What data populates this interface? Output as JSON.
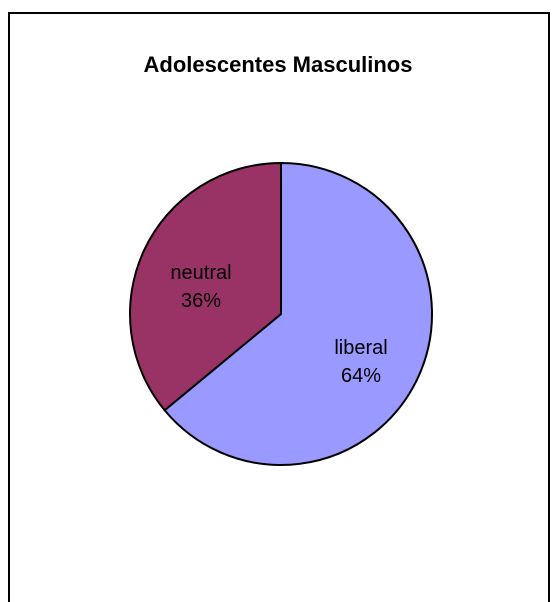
{
  "chart_data": {
    "type": "pie",
    "title": "Adolescentes Masculinos",
    "slices": [
      {
        "label": "liberal",
        "value": 64,
        "percent_label": "64%",
        "color": "#9999ff"
      },
      {
        "label": "neutral",
        "value": 36,
        "percent_label": "36%",
        "color": "#993366"
      }
    ],
    "legend": "none"
  }
}
